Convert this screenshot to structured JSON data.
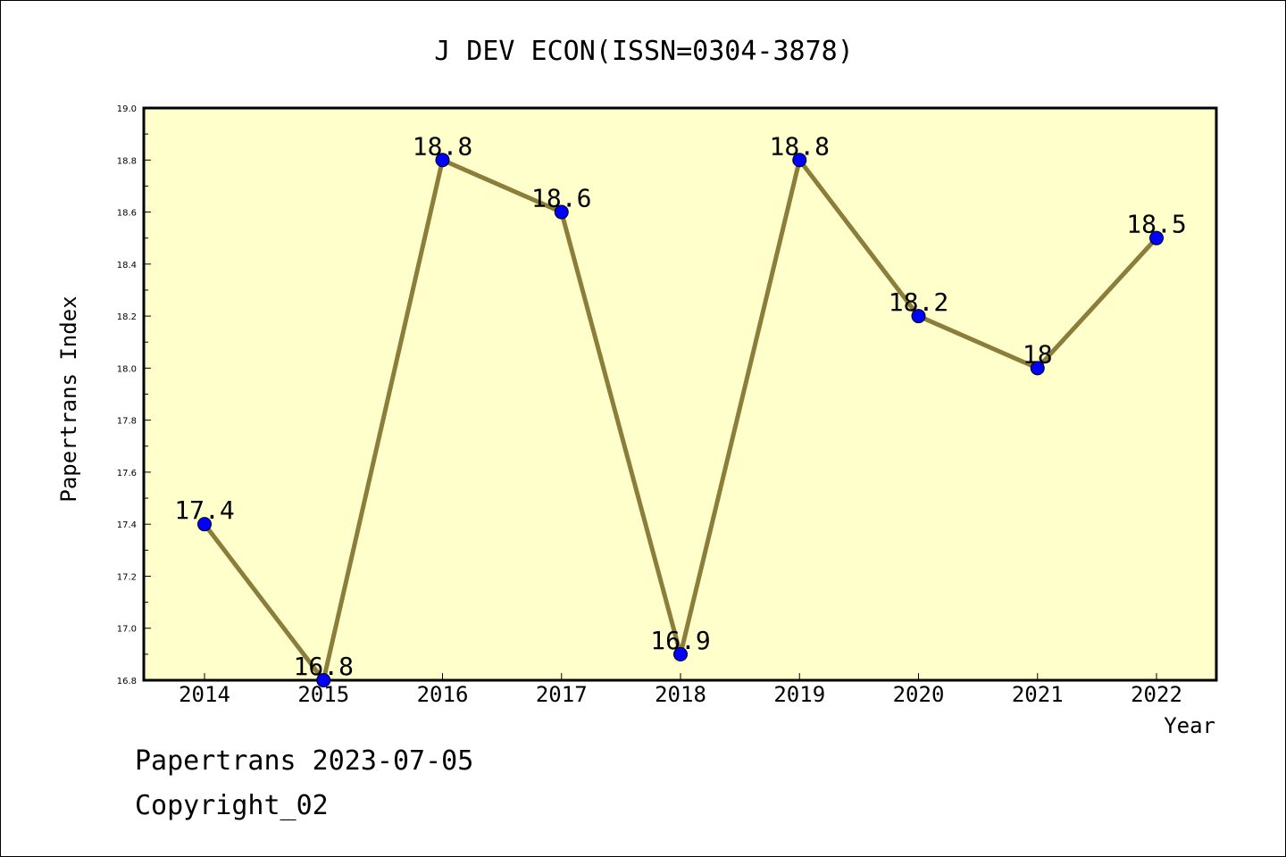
{
  "chart_data": {
    "type": "line",
    "title": "J DEV ECON(ISSN=0304-3878)",
    "xlabel": "Year",
    "ylabel": "Papertrans Index",
    "categories": [
      "2014",
      "2015",
      "2016",
      "2017",
      "2018",
      "2019",
      "2020",
      "2021",
      "2022"
    ],
    "series": [
      {
        "values": [
          17.4,
          16.8,
          18.8,
          18.6,
          16.9,
          18.8,
          18.2,
          18.0,
          18.5
        ],
        "data_labels": [
          "17.4",
          "16.8",
          "18.8",
          "18.6",
          "16.9",
          "18.8",
          "18.2",
          "18",
          "18.5"
        ]
      }
    ],
    "ylim": [
      16.8,
      19.0
    ],
    "yticks": [
      "16.8",
      "17.0",
      "17.2",
      "17.4",
      "17.6",
      "17.8",
      "18.0",
      "18.2",
      "18.4",
      "18.6",
      "18.8",
      "19.0"
    ],
    "grid": false,
    "colors": {
      "plot_background": "#ffffcc",
      "line": "#8b7d3a",
      "marker": "#0000ff"
    }
  },
  "footer": {
    "date_text": "Papertrans 2023-07-05",
    "copyright_text": "Copyright_02"
  }
}
